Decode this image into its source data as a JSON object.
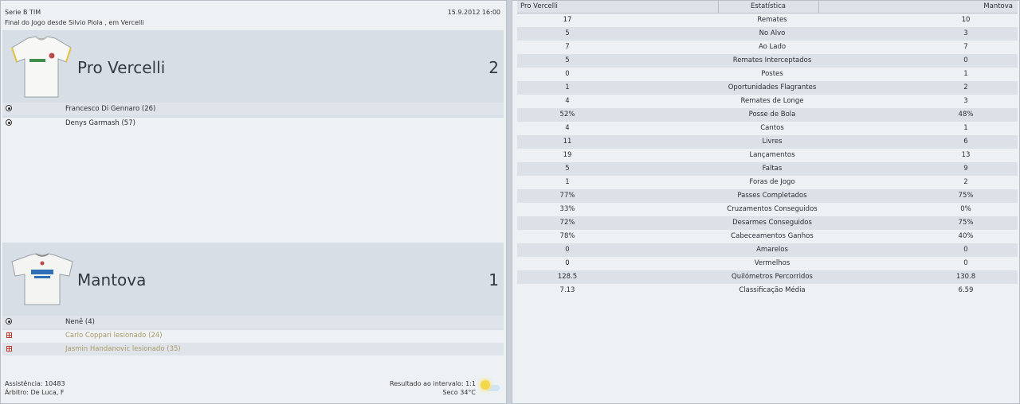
{
  "match": {
    "competition": "Serie B TIM",
    "date_time": "15.9.2012 16:00",
    "status": "Final do Jogo desde Silvio Piola , em Vercelli",
    "attendance": "Assistência: 10483",
    "referee": "Árbitro: De Luca, F",
    "halftime": "Resultado ao intervalo: 1:1",
    "weather": "Seco 34°C"
  },
  "home": {
    "name": "Pro Vercelli",
    "score": "2",
    "events": [
      {
        "type": "goal",
        "text": "Francesco Di Gennaro (26)"
      },
      {
        "type": "goal",
        "text": "Denys Garmash (57)"
      }
    ]
  },
  "away": {
    "name": "Mantova",
    "score": "1",
    "events": [
      {
        "type": "goal",
        "text": "Nenê (4)"
      },
      {
        "type": "injury",
        "text": "Carlo Coppari lesionado (24)"
      },
      {
        "type": "injury",
        "text": "Jasmin Handanovic lesionado (35)"
      }
    ]
  },
  "stats": {
    "header_home": "Pro Vercelli",
    "header_label": "Estatística",
    "header_away": "Mantova",
    "rows": [
      {
        "home": "17",
        "label": "Remates",
        "away": "10"
      },
      {
        "home": "5",
        "label": "No Alvo",
        "away": "3"
      },
      {
        "home": "7",
        "label": "Ao Lado",
        "away": "7"
      },
      {
        "home": "5",
        "label": "Remates Interceptados",
        "away": "0"
      },
      {
        "home": "0",
        "label": "Postes",
        "away": "1"
      },
      {
        "home": "1",
        "label": "Oportunidades Flagrantes",
        "away": "2"
      },
      {
        "home": "4",
        "label": "Remates de Longe",
        "away": "3"
      },
      {
        "home": "52%",
        "label": "Posse de Bola",
        "away": "48%"
      },
      {
        "home": "4",
        "label": "Cantos",
        "away": "1"
      },
      {
        "home": "11",
        "label": "Livres",
        "away": "6"
      },
      {
        "home": "19",
        "label": "Lançamentos",
        "away": "13"
      },
      {
        "home": "5",
        "label": "Faltas",
        "away": "9"
      },
      {
        "home": "1",
        "label": "Foras de Jogo",
        "away": "2"
      },
      {
        "home": "77%",
        "label": "Passes Completados",
        "away": "75%"
      },
      {
        "home": "33%",
        "label": "Cruzamentos Conseguidos",
        "away": "0%"
      },
      {
        "home": "72%",
        "label": "Desarmes Conseguidos",
        "away": "75%"
      },
      {
        "home": "78%",
        "label": "Cabeceamentos Ganhos",
        "away": "40%"
      },
      {
        "home": "0",
        "label": "Amarelos",
        "away": "0"
      },
      {
        "home": "0",
        "label": "Vermelhos",
        "away": "0"
      },
      {
        "home": "128.5",
        "label": "Quilómetros Percorridos",
        "away": "130.8"
      },
      {
        "home": "7.13",
        "label": "Classificação Média",
        "away": "6.59"
      }
    ]
  },
  "icons": {
    "goal": "football-icon",
    "injury": "injury-cross-icon",
    "weather": "sunny-weather-icon"
  }
}
